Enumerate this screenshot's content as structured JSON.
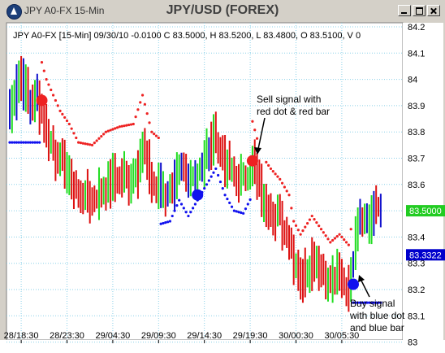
{
  "window": {
    "caption": "JPY A0-FX 15-Min",
    "chart_title": "JPY/USD (FOREX)"
  },
  "info_line": "JPY A0-FX [15-Min] 09/30/10  -0.0100 C 83.5000, H 83.5200, L 83.4800, O 83.5100, V 0",
  "annotations": {
    "sell_line1": "Sell signal with",
    "sell_line2": "red dot & red bar",
    "buy_line1": "Buy signal",
    "buy_line2": "with blue dot",
    "buy_line3": "and blue bar"
  },
  "price_tags": {
    "last_price": "83.5000",
    "stop_price": "83.3322"
  },
  "colors": {
    "up_bar": "#22dd22",
    "down_bar": "#dd1111",
    "buy_bar": "#1111cc",
    "sell_dot": "#ee2222",
    "buy_dot": "#1111ee",
    "grid": "#8ad0e8",
    "last_tag": "#22cc22",
    "stop_tag": "#0000cc"
  },
  "chart_data": {
    "type": "bar",
    "title": "JPY/USD (FOREX)",
    "ylim": [
      83.0,
      84.2
    ],
    "y_ticks": [
      "84.2",
      "84.1",
      "84",
      "83.9",
      "83.8",
      "83.7",
      "83.6",
      "83.5",
      "83.4",
      "83.3",
      "83.2",
      "83.1",
      "83"
    ],
    "x_ticks": [
      "28/18:30",
      "28/23:30",
      "29/04:30",
      "29/09:30",
      "29/14:30",
      "29/19:30",
      "30/00:30",
      "30/05:30"
    ],
    "close_key_points": [
      [
        0,
        83.88
      ],
      [
        4,
        84.02
      ],
      [
        8,
        83.92
      ],
      [
        12,
        83.93
      ],
      [
        16,
        83.8
      ],
      [
        22,
        83.68
      ],
      [
        26,
        83.63
      ],
      [
        30,
        83.56
      ],
      [
        36,
        83.55
      ],
      [
        42,
        83.6
      ],
      [
        48,
        83.62
      ],
      [
        54,
        83.63
      ],
      [
        58,
        83.74
      ],
      [
        62,
        83.6
      ],
      [
        66,
        83.57
      ],
      [
        70,
        83.58
      ],
      [
        74,
        83.66
      ],
      [
        78,
        83.6
      ],
      [
        82,
        83.66
      ],
      [
        86,
        83.72
      ],
      [
        90,
        83.78
      ],
      [
        94,
        83.68
      ],
      [
        98,
        83.62
      ],
      [
        102,
        83.61
      ],
      [
        106,
        83.68
      ],
      [
        110,
        83.55
      ],
      [
        114,
        83.5
      ],
      [
        118,
        83.46
      ],
      [
        122,
        83.4
      ],
      [
        124,
        83.3
      ],
      [
        127,
        83.25
      ],
      [
        132,
        83.32
      ],
      [
        136,
        83.27
      ],
      [
        140,
        83.22
      ],
      [
        144,
        83.25
      ],
      [
        148,
        83.21
      ],
      [
        150,
        83.33
      ],
      [
        152,
        83.5
      ],
      [
        156,
        83.45
      ],
      [
        160,
        83.52
      ],
      [
        162,
        83.52
      ]
    ],
    "signals": [
      {
        "type": "sell",
        "label": "Sell signal with red dot & red bar",
        "bar": 106,
        "price": 83.69
      },
      {
        "type": "buy",
        "label": "Buy signal with blue dot and blue bar",
        "bar": 150,
        "price": 83.22
      }
    ],
    "last_price": 83.5,
    "stop_price": 83.3322
  }
}
